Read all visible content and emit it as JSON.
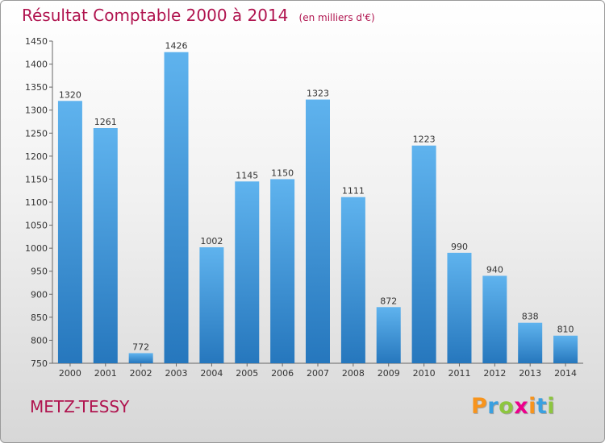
{
  "header": {
    "title": "Résultat Comptable 2000 à 2014",
    "unit": "(en milliers d'€)"
  },
  "footer": {
    "commune": "METZ-TESSY",
    "logo_text": "Proxiti",
    "logo_letters": [
      {
        "ch": "P",
        "color": "#f7941d"
      },
      {
        "ch": "r",
        "color": "#3aa0e0"
      },
      {
        "ch": "o",
        "color": "#8dc63f"
      },
      {
        "ch": "x",
        "color": "#ec008c"
      },
      {
        "ch": "i",
        "color": "#f7941d"
      },
      {
        "ch": "t",
        "color": "#3aa0e0"
      },
      {
        "ch": "i",
        "color": "#8dc63f"
      }
    ]
  },
  "colors": {
    "title": "#b0144f",
    "bar_light": "#5fb3ee",
    "bar_dark": "#2677bd",
    "axis_text": "#333333"
  },
  "chart_data": {
    "type": "bar",
    "title": "Résultat Comptable 2000 à 2014",
    "subtitle": "(en milliers d'€)",
    "xlabel": "",
    "ylabel": "",
    "categories": [
      "2000",
      "2001",
      "2002",
      "2003",
      "2004",
      "2005",
      "2006",
      "2007",
      "2008",
      "2009",
      "2010",
      "2011",
      "2012",
      "2013",
      "2014"
    ],
    "values": [
      1320,
      1261,
      772,
      1426,
      1002,
      1145,
      1150,
      1323,
      1111,
      872,
      1223,
      990,
      940,
      838,
      810
    ],
    "ylim": [
      750,
      1450
    ],
    "yticks": [
      750,
      800,
      850,
      900,
      950,
      1000,
      1050,
      1100,
      1150,
      1200,
      1250,
      1300,
      1350,
      1400,
      1450
    ],
    "grid": false,
    "data_labels": true
  }
}
